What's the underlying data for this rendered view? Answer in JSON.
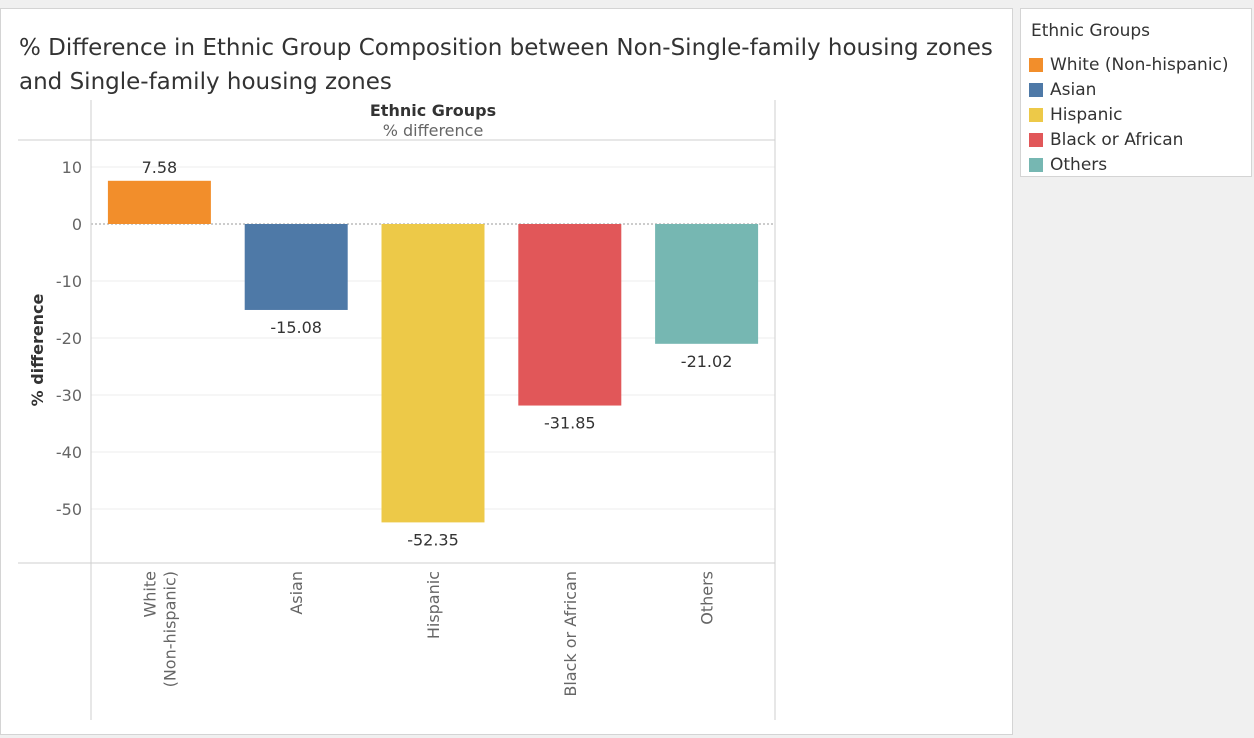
{
  "chart_data": {
    "type": "bar",
    "title": "% Difference in Ethnic Group Composition between Non-Single-family housing zones and Single-family housing zones",
    "header": {
      "title": "Ethnic Groups",
      "subtitle": "% difference"
    },
    "ylabel": "% difference",
    "ylim": [
      -60,
      14
    ],
    "yticks": [
      10,
      0,
      -10,
      -20,
      -30,
      -40,
      -50
    ],
    "grid": true,
    "categories": [
      "White (Non-hispanic)",
      "Asian",
      "Hispanic",
      "Black or African",
      "Others"
    ],
    "category_tick_lines": [
      [
        "White",
        "(Non-hispanic)"
      ],
      [
        "Asian"
      ],
      [
        "Hispanic"
      ],
      [
        "Black or African"
      ],
      [
        "Others"
      ]
    ],
    "values": [
      7.58,
      -15.08,
      -52.35,
      -31.85,
      -21.02
    ],
    "data_labels": [
      "7.58",
      "-15.08",
      "-52.35",
      "-31.85",
      "-21.02"
    ],
    "colors": [
      "#f28e2b",
      "#4e79a7",
      "#edc948",
      "#e15759",
      "#76b7b2"
    ]
  },
  "legend": {
    "title": "Ethnic Groups",
    "position": "top-right",
    "items": [
      {
        "label": "White (Non-hispanic)",
        "color": "#f28e2b"
      },
      {
        "label": "Asian",
        "color": "#4e79a7"
      },
      {
        "label": "Hispanic",
        "color": "#edc948"
      },
      {
        "label": "Black or African",
        "color": "#e15759"
      },
      {
        "label": "Others",
        "color": "#76b7b2"
      }
    ]
  }
}
